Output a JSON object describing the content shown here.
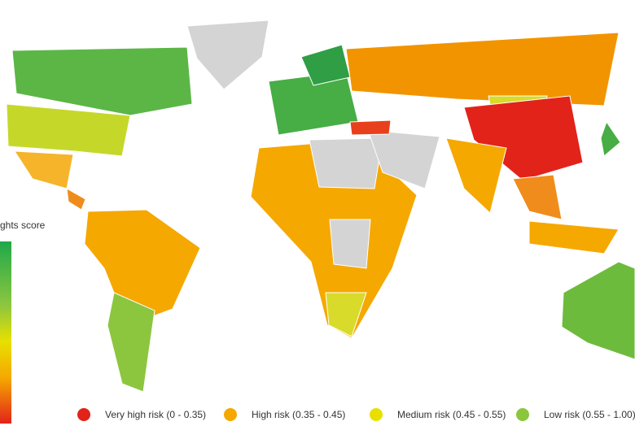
{
  "colorbar": {
    "title": "ghts score"
  },
  "legend": [
    {
      "label": "Very high risk (0 - 0.35)",
      "color": "#e2231a"
    },
    {
      "label": "High risk (0.35 - 0.45)",
      "color": "#f5a800"
    },
    {
      "label": "Medium risk (0.45 - 0.55)",
      "color": "#e8e000"
    },
    {
      "label": "Low risk (0.55 - 1.00)",
      "color": "#8cc63f"
    }
  ]
}
